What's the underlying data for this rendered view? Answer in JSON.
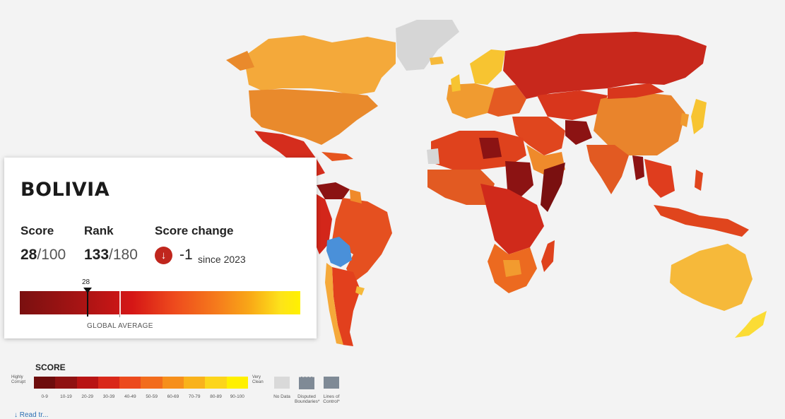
{
  "card": {
    "country": "BOLIVIA",
    "score_label": "Score",
    "score_value": "28",
    "score_denominator": "/100",
    "rank_label": "Rank",
    "rank_value": "133",
    "rank_denominator": "/180",
    "change_label": "Score change",
    "change_value": "-1",
    "change_since": "since 2023",
    "change_icon": "arrow-down-icon",
    "marker_value": "28",
    "global_average_label": "GLOBAL AVERAGE",
    "global_average_tick": "43"
  },
  "legend": {
    "title": "SCORE",
    "left_label": "Highly Corrupt",
    "right_label": "Very Clean",
    "ranges": [
      "0-9",
      "10-19",
      "20-29",
      "30-39",
      "40-49",
      "50-59",
      "60-69",
      "70-79",
      "80-89",
      "90-100"
    ],
    "colors": [
      "#6e0d0d",
      "#8f1212",
      "#b81414",
      "#d9281a",
      "#ec4a1e",
      "#f26c1d",
      "#f68f1c",
      "#f9b21b",
      "#fcd51b",
      "#fff000"
    ],
    "no_data_label": "No Data",
    "no_data_color": "#d9d9d9",
    "disputed_label": "Disputed Boundaries*",
    "lines_label": "Lines of Control*",
    "boundary_color": "#7f8a96"
  },
  "footer": {
    "link_text": "↓ Read tr..."
  },
  "map": {
    "highlight_color": "#4a90d9",
    "highlighted_country": "Bolivia"
  }
}
